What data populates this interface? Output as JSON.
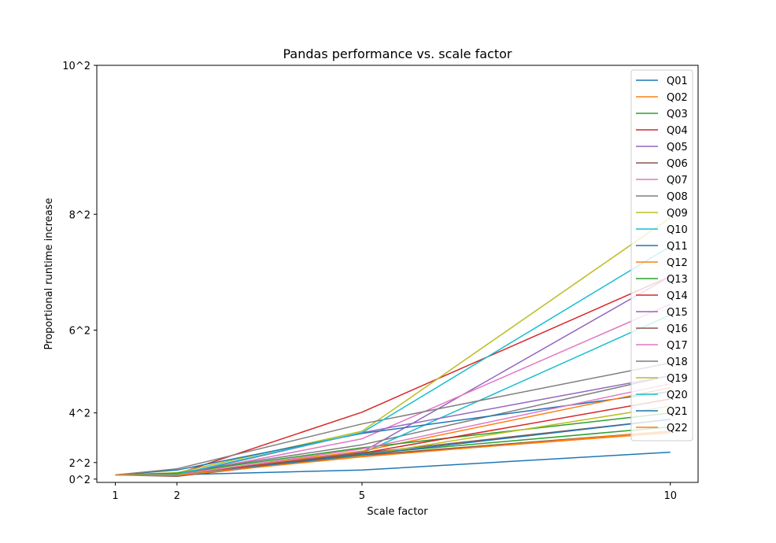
{
  "chart_data": {
    "type": "line",
    "title": "Pandas performance vs. scale factor",
    "xlabel": "Scale factor",
    "ylabel": "Proportional runtime increase",
    "x": [
      1,
      2,
      5,
      10
    ],
    "xticks": [
      "1",
      "2",
      "5",
      "10"
    ],
    "xlim": [
      0.7,
      10.45
    ],
    "yticks": [
      "0^2",
      "2^2",
      "4^2",
      "6^2",
      "8^2",
      "10^2"
    ],
    "ytick_values": [
      0,
      4,
      16,
      36,
      64,
      100
    ],
    "ylim": [
      -0.8,
      100
    ],
    "y_scale": "square",
    "grid": false,
    "legend_position": "top-right",
    "series": [
      {
        "name": "Q01",
        "color": "#1f77b4",
        "values": [
          1,
          1.03,
          1.48,
          2.55
        ]
      },
      {
        "name": "Q02",
        "color": "#ff7f0e",
        "values": [
          1,
          1.0,
          2.36,
          3.35
        ]
      },
      {
        "name": "Q03",
        "color": "#2ca02c",
        "values": [
          1,
          1.0,
          2.46,
          3.55
        ]
      },
      {
        "name": "Q04",
        "color": "#d62728",
        "values": [
          1,
          1.13,
          4.02,
          7.0
        ]
      },
      {
        "name": "Q05",
        "color": "#9467bd",
        "values": [
          1,
          1.0,
          2.55,
          7.0
        ]
      },
      {
        "name": "Q06",
        "color": "#8c564b",
        "values": [
          1,
          0.82,
          2.4,
          3.4
        ]
      },
      {
        "name": "Q07",
        "color": "#e377c2",
        "values": [
          1,
          1.0,
          3.12,
          6.5
        ]
      },
      {
        "name": "Q08",
        "color": "#7f7f7f",
        "values": [
          1,
          1.22,
          2.88,
          5.0
        ]
      },
      {
        "name": "Q09",
        "color": "#bcbd22",
        "values": [
          1,
          1.25,
          3.4,
          7.95
        ]
      },
      {
        "name": "Q10",
        "color": "#17becf",
        "values": [
          1,
          1.08,
          2.5,
          6.3
        ]
      },
      {
        "name": "Q11",
        "color": "#1f77b4",
        "values": [
          1,
          1.48,
          3.32,
          4.6
        ]
      },
      {
        "name": "Q12",
        "color": "#ff7f0e",
        "values": [
          1,
          1.12,
          2.6,
          4.7
        ]
      },
      {
        "name": "Q13",
        "color": "#2ca02c",
        "values": [
          1,
          1.2,
          2.75,
          4.0
        ]
      },
      {
        "name": "Q14",
        "color": "#d62728",
        "values": [
          1,
          1.05,
          2.5,
          4.4
        ]
      },
      {
        "name": "Q15",
        "color": "#9467bd",
        "values": [
          1,
          0.95,
          3.35,
          5.0
        ]
      },
      {
        "name": "Q16",
        "color": "#8c564b",
        "values": [
          1,
          0.92,
          2.5,
          3.8
        ]
      },
      {
        "name": "Q17",
        "color": "#e377c2",
        "values": [
          1,
          1.0,
          2.7,
          4.8
        ]
      },
      {
        "name": "Q18",
        "color": "#7f7f7f",
        "values": [
          1,
          1.58,
          3.65,
          5.3
        ]
      },
      {
        "name": "Q19",
        "color": "#bcbd22",
        "values": [
          1,
          1.0,
          2.4,
          4.2
        ]
      },
      {
        "name": "Q20",
        "color": "#17becf",
        "values": [
          1,
          1.08,
          3.35,
          7.5
        ]
      },
      {
        "name": "Q21",
        "color": "#1f77b4",
        "values": [
          1,
          0.95,
          2.42,
          3.8
        ]
      },
      {
        "name": "Q22",
        "color": "#ff7f0e",
        "values": [
          1,
          0.95,
          2.32,
          3.4
        ]
      }
    ]
  }
}
